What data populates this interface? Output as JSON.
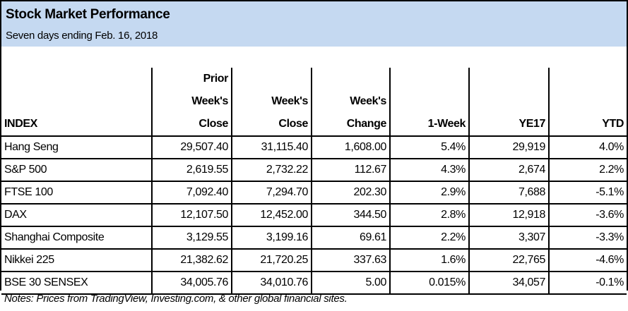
{
  "header": {
    "title": "Stock Market Performance",
    "subtitle": "Seven days ending Feb. 16, 2018",
    "band_color": "#c5d9f1"
  },
  "table": {
    "columns": [
      [
        "INDEX"
      ],
      [
        "Prior",
        "Week's",
        "Close"
      ],
      [
        "Week's",
        "Close"
      ],
      [
        "Week's",
        "Change"
      ],
      [
        "1-Week"
      ],
      [
        "YE17"
      ],
      [
        "YTD"
      ]
    ],
    "rows": [
      [
        "Hang Seng",
        "29,507.40",
        "31,115.40",
        "1,608.00",
        "5.4%",
        "29,919",
        "4.0%"
      ],
      [
        "S&P 500",
        "2,619.55",
        "2,732.22",
        "112.67",
        "4.3%",
        "2,674",
        "2.2%"
      ],
      [
        "FTSE 100",
        "7,092.40",
        "7,294.70",
        "202.30",
        "2.9%",
        "7,688",
        "-5.1%"
      ],
      [
        "DAX",
        "12,107.50",
        "12,452.00",
        "344.50",
        "2.8%",
        "12,918",
        "-3.6%"
      ],
      [
        "Shanghai Composite",
        "3,129.55",
        "3,199.16",
        "69.61",
        "2.2%",
        "3,307",
        "-3.3%"
      ],
      [
        "Nikkei 225",
        "21,382.62",
        "21,720.25",
        "337.63",
        "1.6%",
        "22,765",
        "-4.6%"
      ],
      [
        "BSE 30 SENSEX",
        "34,005.76",
        "34,010.76",
        "5.00",
        "0.015%",
        "34,057",
        "-0.1%"
      ]
    ]
  },
  "notes": "Notes: Prices from TradingView, Investing.com, & other global financial sites."
}
